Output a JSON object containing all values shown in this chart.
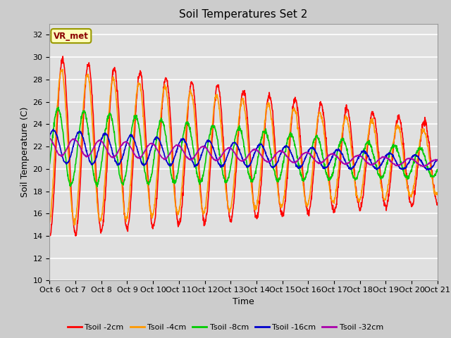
{
  "title": "Soil Temperatures Set 2",
  "xlabel": "Time",
  "ylabel": "Soil Temperature (C)",
  "ylim": [
    10,
    33
  ],
  "yticks": [
    10,
    12,
    14,
    16,
    18,
    20,
    22,
    24,
    26,
    28,
    30,
    32
  ],
  "xlim": [
    0,
    15
  ],
  "xtick_labels": [
    "Oct 6",
    "Oct 7",
    "Oct 8",
    "Oct 9",
    "Oct 10",
    "Oct 11",
    "Oct 12",
    "Oct 13",
    "Oct 14",
    "Oct 15",
    "Oct 16",
    "Oct 17",
    "Oct 18",
    "Oct 19",
    "Oct 20",
    "Oct 21"
  ],
  "fig_bg": "#cccccc",
  "plot_bg": "#e0e0e0",
  "grid_color": "#ffffff",
  "legend_label": "VR_met",
  "series": [
    {
      "name": "Tsoil -2cm",
      "color": "#ff0000",
      "lw": 1.2
    },
    {
      "name": "Tsoil -4cm",
      "color": "#ff9900",
      "lw": 1.2
    },
    {
      "name": "Tsoil -8cm",
      "color": "#00cc00",
      "lw": 1.2
    },
    {
      "name": "Tsoil -16cm",
      "color": "#0000cc",
      "lw": 1.2
    },
    {
      "name": "Tsoil -32cm",
      "color": "#aa00aa",
      "lw": 1.2
    }
  ]
}
